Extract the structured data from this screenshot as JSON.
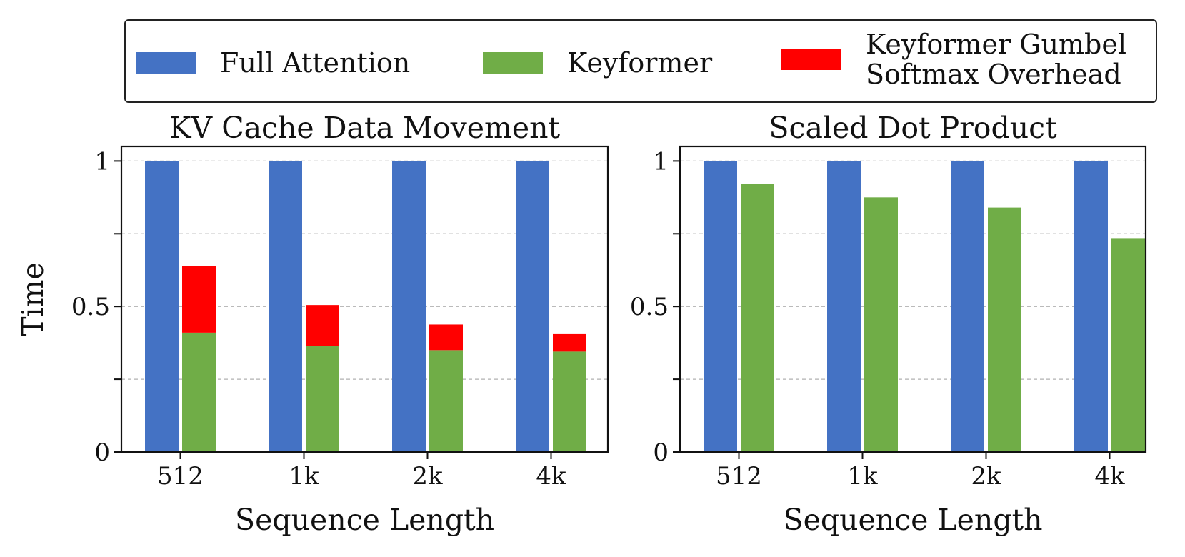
{
  "legend": {
    "items": [
      {
        "label": "Full Attention",
        "color": "#4472C4"
      },
      {
        "label": "Keyformer",
        "color": "#70AD47"
      },
      {
        "label": "Keyformer Gumbel\nSoftmax Overhead",
        "color": "#FF0000"
      }
    ]
  },
  "chart_data": [
    {
      "type": "bar",
      "title": "KV Cache Data Movement",
      "xlabel": "Sequence Length",
      "ylabel": "Time",
      "categories": [
        "512",
        "1k",
        "2k",
        "4k"
      ],
      "ylim": [
        0,
        1.05
      ],
      "yticks": [
        0,
        0.25,
        0.5,
        0.75,
        1
      ],
      "ytick_labels": [
        "0",
        "",
        "0.5",
        "",
        "1"
      ],
      "grid": true,
      "series": [
        {
          "name": "Full Attention",
          "values": [
            1.0,
            1.0,
            1.0,
            1.0
          ]
        },
        {
          "name": "Keyformer",
          "values": [
            0.41,
            0.365,
            0.35,
            0.345
          ]
        },
        {
          "name": "Keyformer Gumbel Softmax Overhead",
          "values": [
            0.23,
            0.14,
            0.088,
            0.06
          ],
          "stacked_on": "Keyformer"
        }
      ]
    },
    {
      "type": "bar",
      "title": "Scaled Dot Product",
      "xlabel": "Sequence Length",
      "ylabel": "",
      "categories": [
        "512",
        "1k",
        "2k",
        "4k"
      ],
      "ylim": [
        0,
        1.05
      ],
      "yticks": [
        0,
        0.25,
        0.5,
        0.75,
        1
      ],
      "ytick_labels": [
        "0",
        "",
        "0.5",
        "",
        "1"
      ],
      "grid": true,
      "series": [
        {
          "name": "Full Attention",
          "values": [
            1.0,
            1.0,
            1.0,
            1.0
          ]
        },
        {
          "name": "Keyformer",
          "values": [
            0.92,
            0.875,
            0.84,
            0.735
          ]
        }
      ]
    }
  ]
}
